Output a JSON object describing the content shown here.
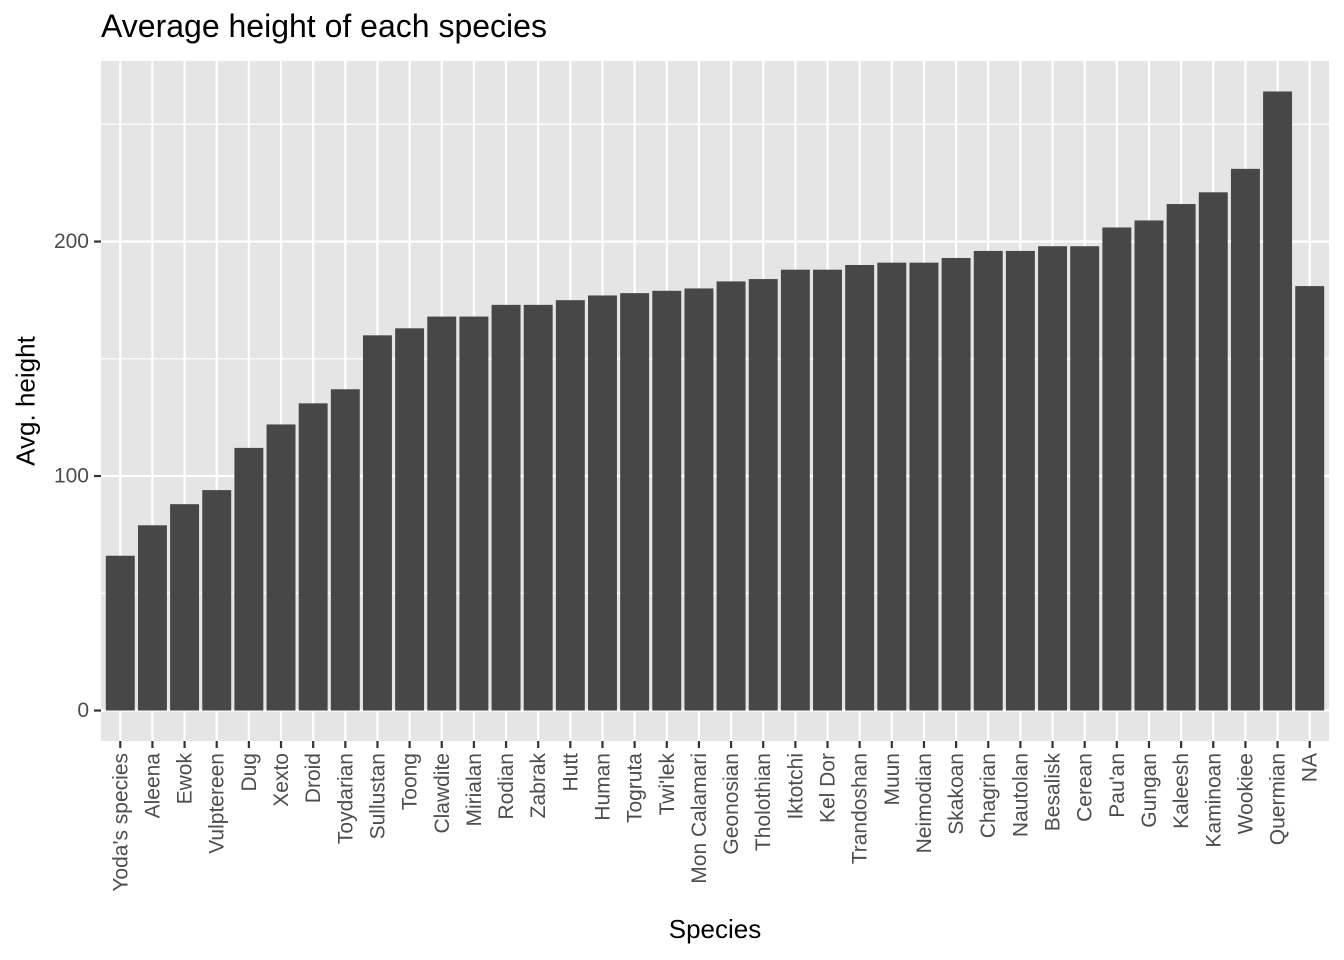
{
  "chart_data": {
    "type": "bar",
    "title": "Average height of each species",
    "xlabel": "Species",
    "ylabel": "Avg. height",
    "categories": [
      "Yoda's species",
      "Aleena",
      "Ewok",
      "Vulptereen",
      "Dug",
      "Xexto",
      "Droid",
      "Toydarian",
      "Sullustan",
      "Toong",
      "Clawdite",
      "Mirialan",
      "Rodian",
      "Zabrak",
      "Hutt",
      "Human",
      "Togruta",
      "Twi'lek",
      "Mon Calamari",
      "Geonosian",
      "Tholothian",
      "Iktotchi",
      "Kel Dor",
      "Trandoshan",
      "Muun",
      "Neimodian",
      "Skakoan",
      "Chagrian",
      "Nautolan",
      "Besalisk",
      "Cerean",
      "Pau'an",
      "Gungan",
      "Kaleesh",
      "Kaminoan",
      "Wookiee",
      "Quermian",
      "NA"
    ],
    "values": [
      66,
      79,
      88,
      94,
      112,
      122,
      131,
      137,
      160,
      163,
      168,
      168,
      173,
      173,
      175,
      177,
      178,
      179,
      180,
      183,
      184,
      188,
      188,
      190,
      191,
      191,
      193,
      196,
      196,
      198,
      198,
      206,
      209,
      216,
      221,
      231,
      264,
      181
    ],
    "ylim": [
      -13,
      277
    ],
    "yticks": [
      0,
      100,
      200
    ],
    "grid": true,
    "colors": {
      "panel": "#e5e5e5",
      "grid": "#ffffff",
      "bar": "#474747",
      "tick_text": "#4d4d4d",
      "tick": "#333333"
    }
  }
}
